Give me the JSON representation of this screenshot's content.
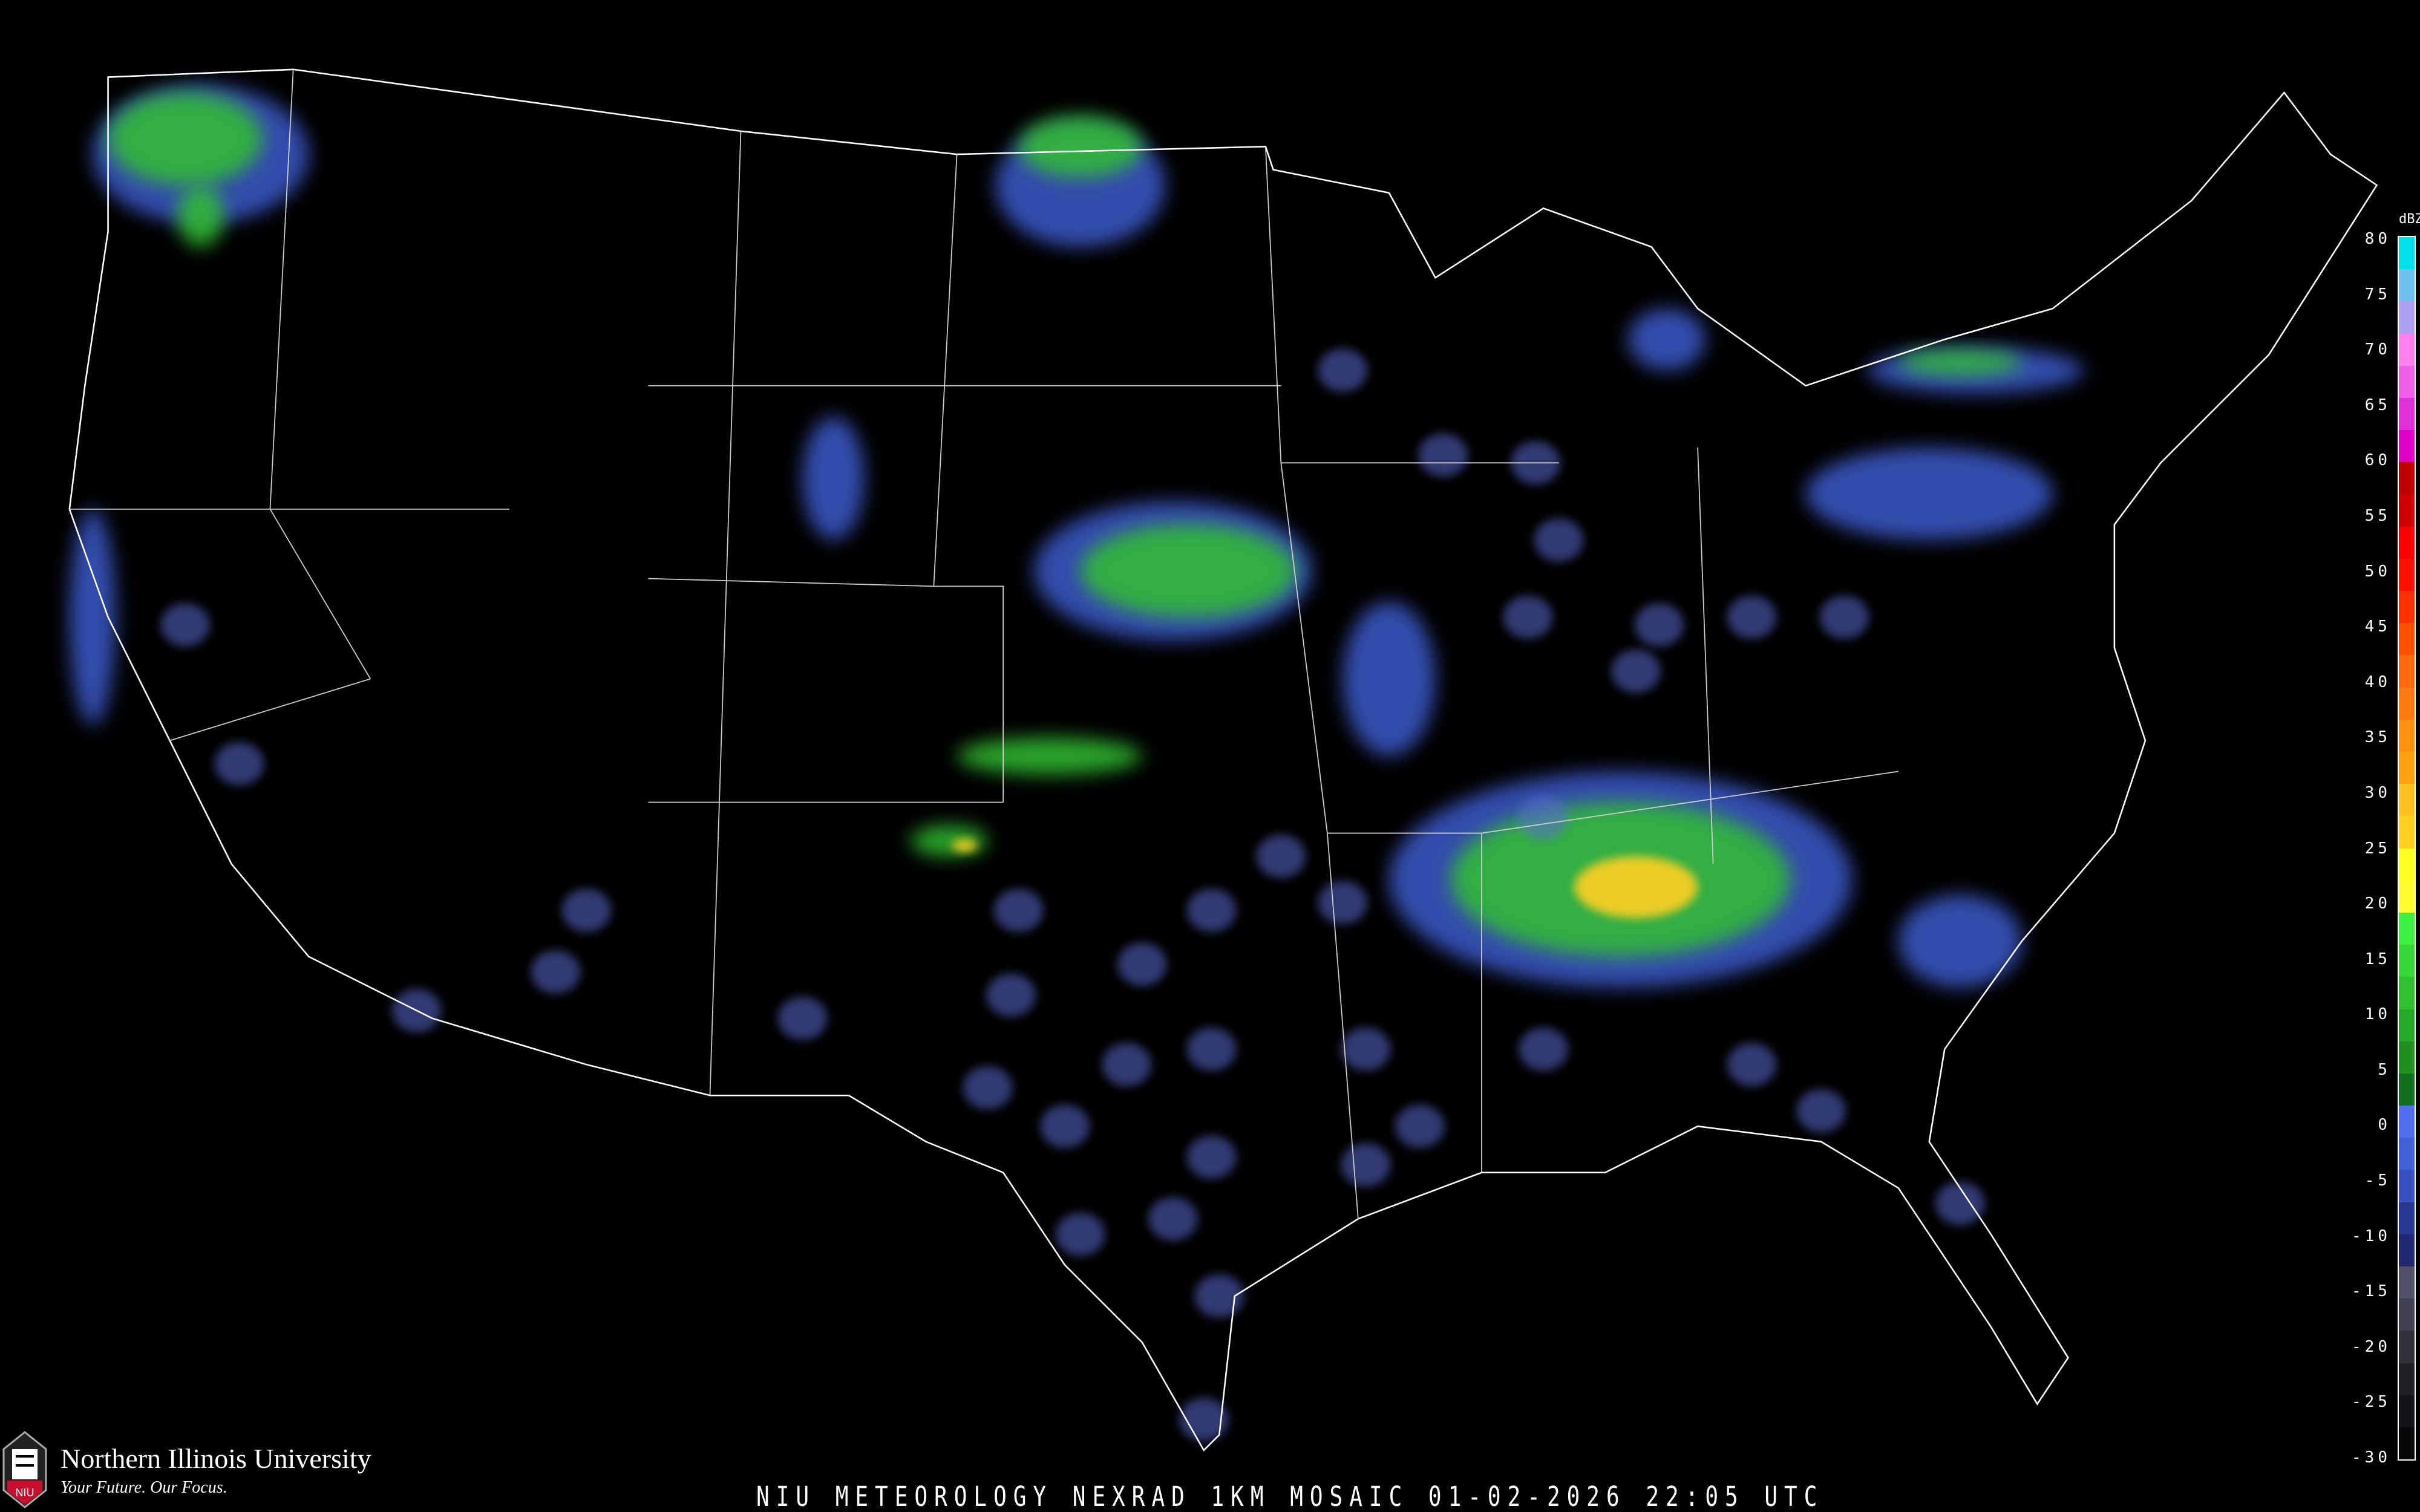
{
  "product_title": "NIU METEOROLOGY NEXRAD 1KM MOSAIC  01-02-2026 22:05 UTC",
  "logo": {
    "name": "Northern Illinois University",
    "tagline": "Your Future. Our Focus.",
    "emblem_text": "NIU",
    "brand_color": "#c8102e"
  },
  "legend": {
    "unit": "dBZ",
    "labels": [
      "80",
      "75",
      "70",
      "65",
      "60",
      "55",
      "50",
      "45",
      "40",
      "35",
      "30",
      "25",
      "20",
      "15",
      "10",
      "5",
      "0",
      "-5",
      "-10",
      "-15",
      "-20",
      "-25",
      "-30"
    ],
    "colors": [
      "#00e0e8",
      "#70c0f0",
      "#b0a0f0",
      "#ff80f0",
      "#f060e8",
      "#e030d8",
      "#e000c8",
      "#c00000",
      "#d00000",
      "#ff0000",
      "#ff1000",
      "#ff3000",
      "#ff5000",
      "#ff6a10",
      "#ff7a10",
      "#ff9010",
      "#ffa010",
      "#ffc020",
      "#ffd020",
      "#ffff20",
      "#ffff30",
      "#40f040",
      "#38d838",
      "#30c030",
      "#28a828",
      "#209020",
      "#107020",
      "#5070f0",
      "#4060d8",
      "#3850c0",
      "#283890",
      "#202870",
      "#505068",
      "#404050",
      "#303038",
      "#202024",
      "#141418",
      "#08080a"
    ]
  }
}
